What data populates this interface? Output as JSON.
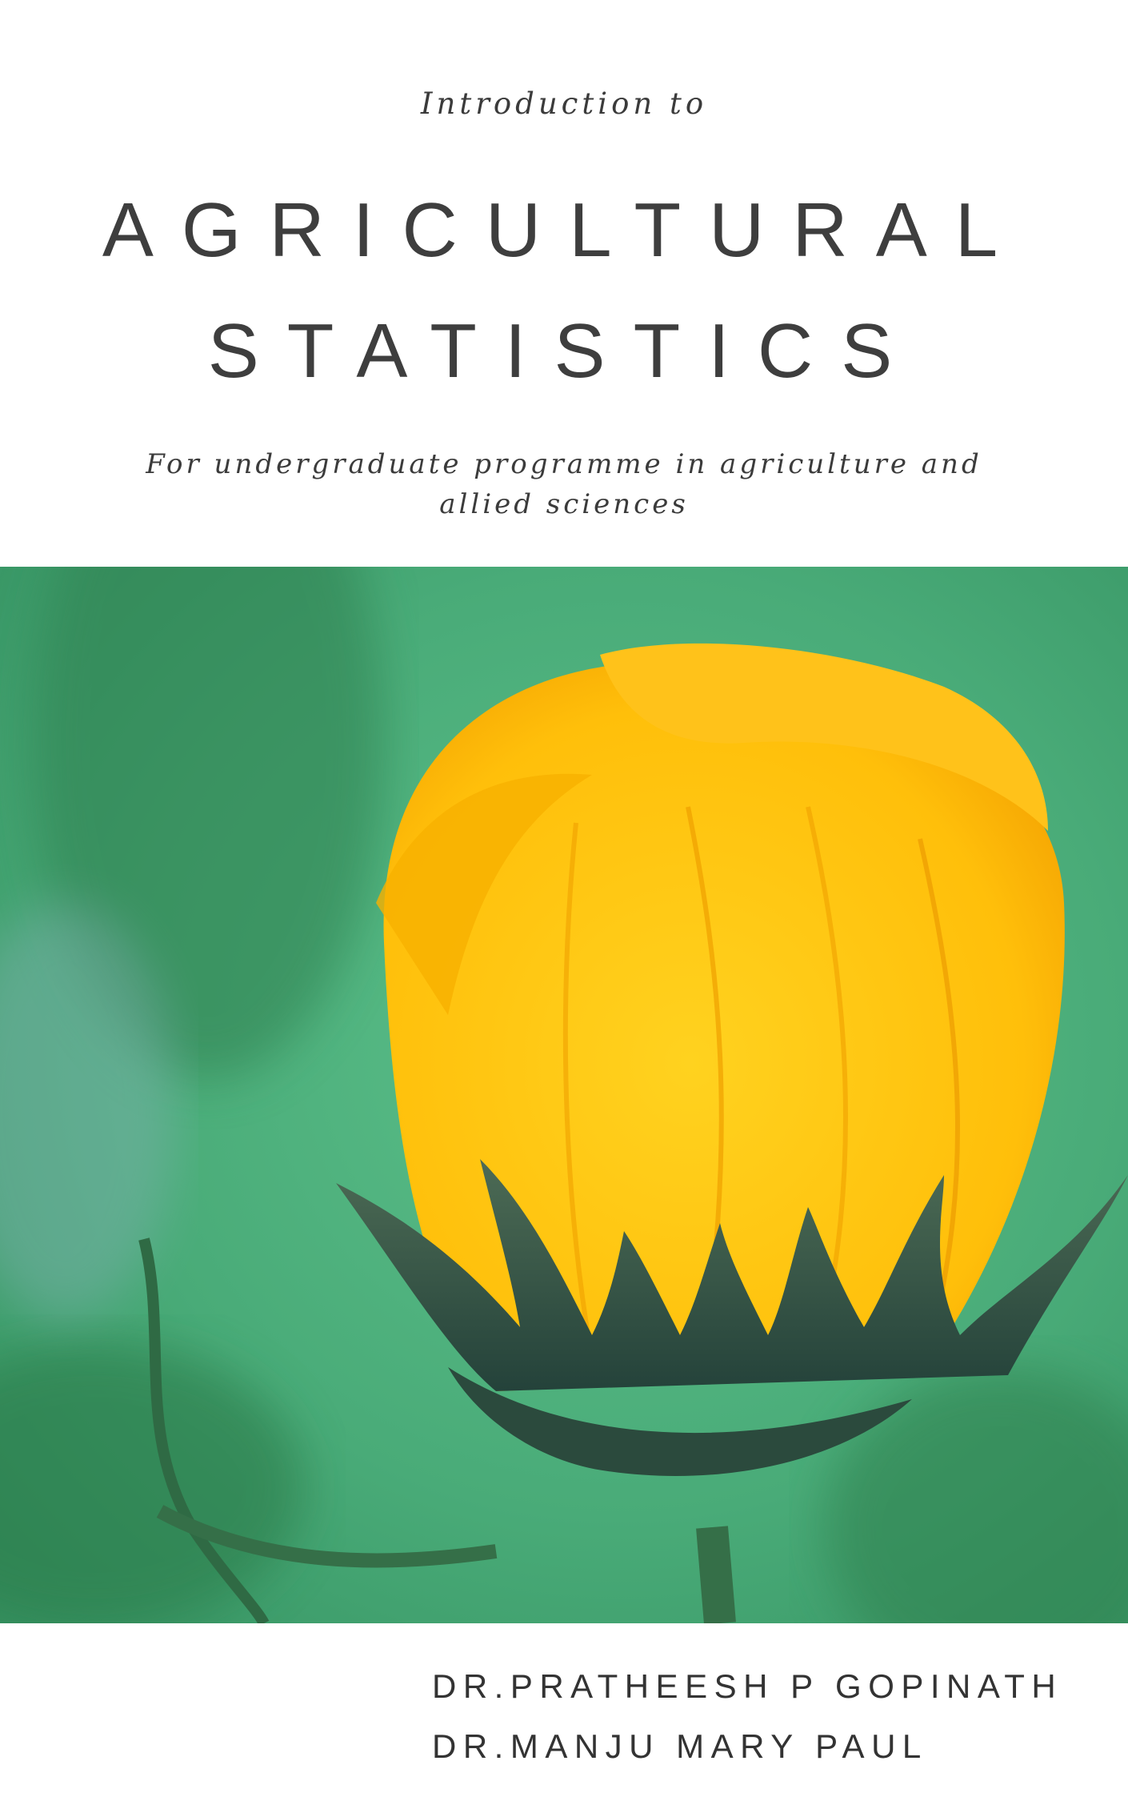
{
  "cover": {
    "pre_title": "Introduction to",
    "title_line1": "AGRICULTURAL",
    "title_line2": "STATISTICS",
    "subtitle": "For undergraduate programme in agriculture and allied sciences",
    "authors": [
      "DR.PRATHEESH P GOPINATH",
      "DR.MANJU MARY PAUL"
    ]
  },
  "colors": {
    "text": "#3e3e3e",
    "background_green": "#4bb07a",
    "flower_yellow": "#ffc20e",
    "flower_orange": "#f5a100"
  },
  "image": {
    "subject": "yellow-flower-bud"
  }
}
